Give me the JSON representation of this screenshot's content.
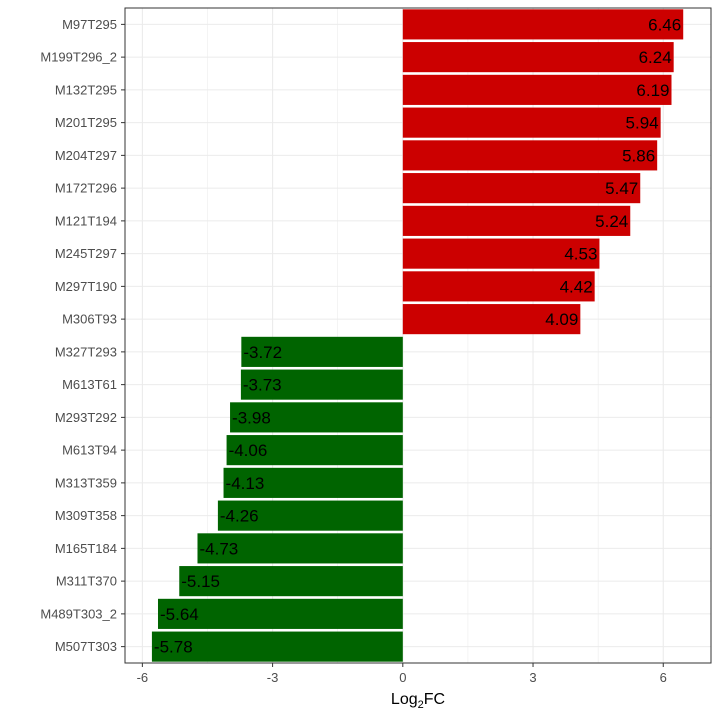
{
  "chart_data": {
    "type": "bar",
    "orientation": "horizontal",
    "categories": [
      "M97T295",
      "M199T296_2",
      "M132T295",
      "M201T295",
      "M204T297",
      "M172T296",
      "M121T194",
      "M245T297",
      "M297T190",
      "M306T93",
      "M327T293",
      "M613T61",
      "M293T292",
      "M613T94",
      "M313T359",
      "M309T358",
      "M165T184",
      "M311T370",
      "M489T303_2",
      "M507T303"
    ],
    "values": [
      6.46,
      6.24,
      6.19,
      5.94,
      5.86,
      5.47,
      5.24,
      4.53,
      4.42,
      4.09,
      -3.72,
      -3.73,
      -3.98,
      -4.06,
      -4.13,
      -4.26,
      -4.73,
      -5.15,
      -5.64,
      -5.78
    ],
    "value_labels": [
      "6.46",
      "6.24",
      "6.19",
      "5.94",
      "5.86",
      "5.47",
      "5.24",
      "4.53",
      "4.42",
      "4.09",
      "-3.72",
      "-3.73",
      "-3.98",
      "-4.06",
      "-4.13",
      "-4.26",
      "-4.73",
      "-5.15",
      "-5.64",
      "-5.78"
    ],
    "xlabel_main": "Log",
    "xlabel_sub": "2",
    "xlabel_tail": "FC",
    "xlim": [
      -6.4,
      7.1
    ],
    "xticks": [
      -6,
      -3,
      0,
      3,
      6
    ],
    "xtick_labels": [
      "-6",
      "-3",
      "0",
      "3",
      "6"
    ],
    "grid": true,
    "colors": {
      "positive": "#cc0000",
      "negative": "#006400",
      "grid": "#ebebeb",
      "panel_border": "#333333"
    }
  }
}
